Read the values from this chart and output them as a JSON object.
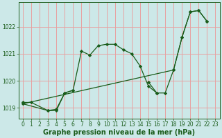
{
  "xlabel": "Graphe pression niveau de la mer (hPa)",
  "background_color": "#cce8e8",
  "grid_color": "#e8a0a0",
  "line_color": "#1a5c1a",
  "marker": "D",
  "markersize": 2.2,
  "linewidth": 0.9,
  "ylim": [
    1018.6,
    1022.9
  ],
  "xlim": [
    -0.5,
    23.5
  ],
  "yticks": [
    1019,
    1020,
    1021,
    1022
  ],
  "xticks": [
    0,
    1,
    2,
    3,
    4,
    5,
    6,
    7,
    8,
    9,
    10,
    11,
    12,
    13,
    14,
    15,
    16,
    17,
    18,
    19,
    20,
    21,
    22,
    23
  ],
  "tick_fontsize": 5.5,
  "xlabel_fontsize": 7.0,
  "line1_x": [
    0,
    1,
    3,
    4,
    5,
    6,
    7,
    8,
    9,
    10,
    11,
    12,
    13,
    14,
    15,
    16
  ],
  "line1_y": [
    1019.2,
    1019.2,
    1018.9,
    1018.95,
    1019.55,
    1019.65,
    1021.1,
    1020.95,
    1021.3,
    1021.35,
    1021.35,
    1021.15,
    1021.0,
    1020.55,
    1019.8,
    1019.55
  ],
  "line2_x": [
    0,
    3,
    4,
    5,
    6,
    15,
    16,
    17,
    18,
    19,
    20,
    21,
    22
  ],
  "line2_y": [
    1019.15,
    1018.9,
    1018.9,
    1019.55,
    1019.65,
    1019.95,
    1019.55,
    1019.55,
    1020.4,
    1021.6,
    1022.55,
    1022.6,
    1022.2
  ],
  "line2_break": 6,
  "line3_x": [
    0,
    18,
    19,
    20,
    21,
    22
  ],
  "line3_y": [
    1019.15,
    1020.4,
    1021.6,
    1022.55,
    1022.6,
    1022.2
  ]
}
